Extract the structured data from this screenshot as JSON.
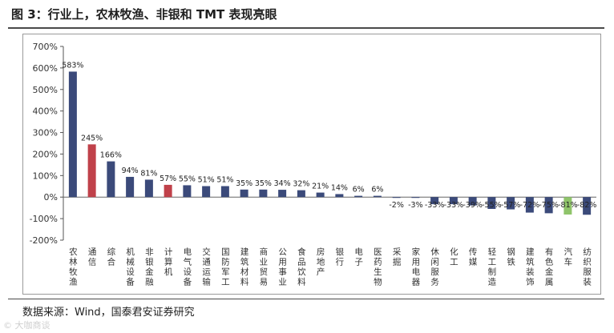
{
  "header": {
    "title": "图 3：行业上，农林牧渔、非银和 TMT 表现亮眼"
  },
  "footer": {
    "source": "数据来源：Wind，国泰君安证券研究"
  },
  "watermark": {
    "text": "© 大咖商谈"
  },
  "colors": {
    "default_bar": "#3b4a7a",
    "red_bar": "#c0414a",
    "green_bar": "#8fc46a",
    "axis_text": "#333333"
  },
  "chart_data": {
    "type": "bar",
    "title": "",
    "xlabel": "",
    "ylabel": "",
    "ylim": [
      -200,
      700
    ],
    "yticks": [
      -200,
      -100,
      0,
      100,
      200,
      300,
      400,
      500,
      600,
      700
    ],
    "ytick_labels": [
      "-200%",
      "-100%",
      "0%",
      "100%",
      "200%",
      "300%",
      "400%",
      "500%",
      "600%",
      "700%"
    ],
    "grid": false,
    "categories": [
      "农林牧渔",
      "通信",
      "综合",
      "机械设备",
      "非银金融",
      "计算机",
      "电气设备",
      "交通运输",
      "国防军工",
      "建筑材料",
      "商业贸易",
      "公用事业",
      "食品饮料",
      "房地产",
      "银行",
      "电子",
      "医药生物",
      "采掘",
      "家用电器",
      "休闲服务",
      "化工",
      "传媒",
      "轻工制造",
      "钢铁",
      "建筑装饰",
      "有色金属",
      "汽车",
      "纺织服装"
    ],
    "values": [
      583,
      245,
      166,
      94,
      81,
      57,
      55,
      51,
      51,
      35,
      35,
      34,
      32,
      21,
      14,
      6,
      6,
      -2,
      -3,
      -33,
      -33,
      -39,
      -55,
      -57,
      -72,
      -75,
      -81,
      -82
    ],
    "value_labels": [
      "583%",
      "245%",
      "166%",
      "94%",
      "81%",
      "57%",
      "55%",
      "51%",
      "51%",
      "35%",
      "35%",
      "34%",
      "32%",
      "21%",
      "14%",
      "6%",
      "6%",
      "-2%",
      "-3%",
      "-33%",
      "-33%",
      "-39%",
      "-55%",
      "-57%",
      "-72%",
      "-75%",
      "-81%",
      "-82%"
    ],
    "bar_colors": [
      "#3b4a7a",
      "#c0414a",
      "#3b4a7a",
      "#3b4a7a",
      "#3b4a7a",
      "#c0414a",
      "#3b4a7a",
      "#3b4a7a",
      "#3b4a7a",
      "#3b4a7a",
      "#3b4a7a",
      "#3b4a7a",
      "#3b4a7a",
      "#3b4a7a",
      "#3b4a7a",
      "#3b4a7a",
      "#3b4a7a",
      "#3b4a7a",
      "#3b4a7a",
      "#3b4a7a",
      "#3b4a7a",
      "#3b4a7a",
      "#3b4a7a",
      "#3b4a7a",
      "#3b4a7a",
      "#3b4a7a",
      "#8fc46a",
      "#3b4a7a"
    ]
  }
}
